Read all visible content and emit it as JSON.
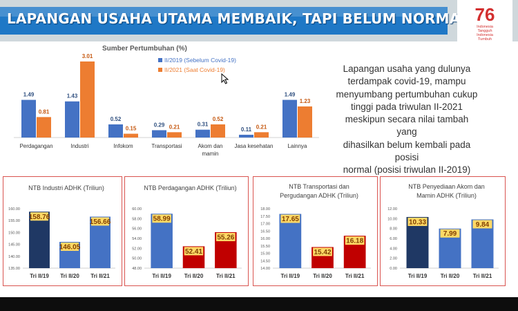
{
  "header": {
    "title": "LAPANGAN USAHA UTAMA MEMBAIK, TAPI BELUM NORMAL",
    "logo": {
      "number": "76",
      "lines": [
        "Indonesia",
        "Tangguh",
        "Indonesia",
        "Tumbuh"
      ]
    }
  },
  "commentary": "Lapangan usaha yang dulunya\nterdampak covid-19, mampu\nmenyumbang pertumbuhan cukup\ntinggi pada triwulan II-2021\nmeskipun secara nilai tambah yang\ndihasilkan belum kembali pada posisi\nnormal (posisi triwulan II-2019)",
  "colors": {
    "blue": "#4472c4",
    "orange": "#ed7d31",
    "navy": "#1f3864",
    "red": "#c00000",
    "label_bg": "#ffd966",
    "header": "#1f78c6",
    "panel_border": "#d9534f"
  },
  "chart_data": [
    {
      "type": "bar",
      "title": "Sumber Pertumbuhan (%)",
      "categories": [
        "Perdagangan",
        "Industri",
        "Infokom",
        "Transportasi",
        "Akom dan mamin",
        "Jasa kesehatan",
        "Lainnya"
      ],
      "series": [
        {
          "name": "II/2019 (Sebelum Covid-19)",
          "values": [
            1.49,
            1.43,
            0.52,
            0.29,
            0.31,
            0.11,
            1.49
          ]
        },
        {
          "name": "II/2021 (Saat Covid-19)",
          "values": [
            0.81,
            3.01,
            0.15,
            0.21,
            0.52,
            0.21,
            1.23
          ]
        }
      ],
      "value_labels": [
        [
          "1.49",
          "1.43",
          "0.52",
          "0.29",
          "0.31",
          "0.11",
          "1.49"
        ],
        [
          "0.81",
          "3.01",
          "0.15",
          "0.21",
          "0.52",
          "0.21",
          "1.23"
        ]
      ],
      "ylim": [
        0,
        3.2
      ],
      "grid": false,
      "legend": "top"
    },
    {
      "type": "bar",
      "title": "NTB Industri ADHK (Triliun)",
      "categories": [
        "Tri II/19",
        "Tri II/20",
        "Tri II/21"
      ],
      "values": [
        158.76,
        146.05,
        156.66
      ],
      "labels": [
        "158.76",
        "146.05",
        "156.66"
      ],
      "bar_colors": [
        "#1f3864",
        "#4472c4",
        "#4472c4"
      ],
      "ylim": [
        135,
        160
      ],
      "yticks": [
        "135.00",
        "140.00",
        "145.00",
        "150.00",
        "155.00",
        "160.00"
      ]
    },
    {
      "type": "bar",
      "title": "NTB Perdagangan ADHK (Triliun)",
      "categories": [
        "Tri II/19",
        "Tri II/20",
        "Tri II/21"
      ],
      "values": [
        58.99,
        52.41,
        55.26
      ],
      "labels": [
        "58.99",
        "52.41",
        "55.26"
      ],
      "bar_colors": [
        "#4472c4",
        "#c00000",
        "#c00000"
      ],
      "ylim": [
        48,
        60
      ],
      "yticks": [
        "48.00",
        "50.00",
        "52.00",
        "54.00",
        "56.00",
        "58.00",
        "60.00"
      ]
    },
    {
      "type": "bar",
      "title": "NTB Transportasi dan Pergudangan ADHK (Triliun)",
      "categories": [
        "Tri II/19",
        "Tri II/20",
        "Tri II/21"
      ],
      "values": [
        17.65,
        15.42,
        16.18
      ],
      "labels": [
        "17.65",
        "15.42",
        "16.18"
      ],
      "bar_colors": [
        "#4472c4",
        "#c00000",
        "#c00000"
      ],
      "ylim": [
        14,
        18
      ],
      "yticks": [
        "14.00",
        "14.50",
        "15.00",
        "15.50",
        "16.00",
        "16.50",
        "17.00",
        "17.50",
        "18.00"
      ]
    },
    {
      "type": "bar",
      "title": "NTB Penyediaan Akom dan Mamin ADHK (Triliun)",
      "categories": [
        "Tri II/19",
        "Tri II/20",
        "Tri II/21"
      ],
      "values": [
        10.33,
        7.99,
        9.84
      ],
      "labels": [
        "10.33",
        "7.99",
        "9.84"
      ],
      "bar_colors": [
        "#1f3864",
        "#4472c4",
        "#4472c4"
      ],
      "ylim": [
        0,
        12
      ],
      "yticks": [
        "0.00",
        "2.00",
        "4.00",
        "6.00",
        "8.00",
        "10.00",
        "12.00"
      ]
    }
  ]
}
